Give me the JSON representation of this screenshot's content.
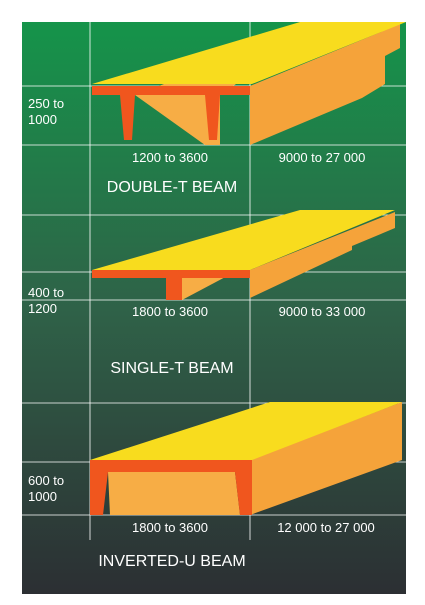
{
  "beams": [
    {
      "depth": [
        "250 to",
        "1000"
      ],
      "width": "1200 to 3600",
      "length": "9000 to 27 000",
      "name": "DOUBLE-T BEAM"
    },
    {
      "depth": [
        "400 to",
        "1200"
      ],
      "width": "1800 to 3600",
      "length": "9000 to 33 000",
      "name": "SINGLE-T BEAM"
    },
    {
      "depth": [
        "600 to",
        "1000"
      ],
      "width": "1800 to 3600",
      "length": "12 000 to 27 000",
      "name": "INVERTED-U BEAM"
    }
  ]
}
